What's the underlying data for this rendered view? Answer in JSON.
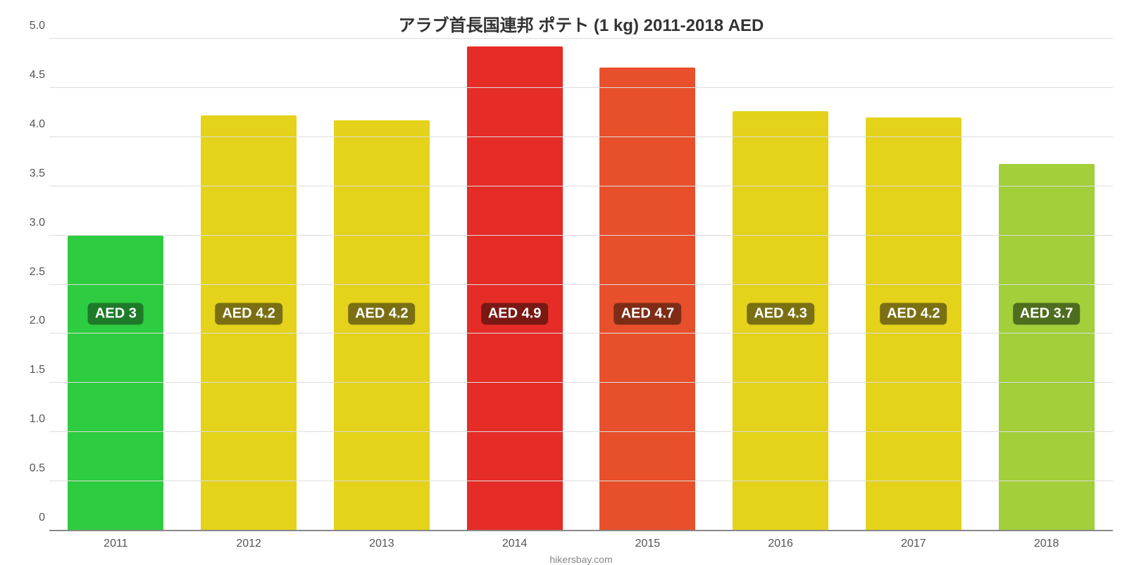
{
  "chart": {
    "type": "bar",
    "title": "アラブ首長国連邦 ポテト (1 kg) 2011-2018 AED",
    "title_fontsize": 24,
    "title_color": "#333333",
    "background_color": "#ffffff",
    "grid_color": "#dddddd",
    "axis_color": "#888888",
    "tick_label_color": "#555555",
    "tick_fontsize": 16,
    "source": "hikersbay.com",
    "source_fontsize": 14,
    "source_color": "#888888",
    "ylim": [
      0,
      5.0
    ],
    "ytick_step": 0.5,
    "yticks": [
      "0",
      "0.5",
      "1.0",
      "1.5",
      "2.0",
      "2.5",
      "3.0",
      "3.5",
      "4.0",
      "4.5",
      "5.0"
    ],
    "bar_width_pct": 72,
    "bar_label_fontsize": 20,
    "bar_label_y_value": 2.2,
    "categories": [
      "2011",
      "2012",
      "2013",
      "2014",
      "2015",
      "2016",
      "2017",
      "2018"
    ],
    "values": [
      3.0,
      4.22,
      4.17,
      4.92,
      4.71,
      4.26,
      4.2,
      3.73
    ],
    "value_labels": [
      "AED 3",
      "AED 4.2",
      "AED 4.2",
      "AED 4.9",
      "AED 4.7",
      "AED 4.3",
      "AED 4.2",
      "AED 3.7"
    ],
    "bar_colors": [
      "#2ecc40",
      "#e4d31a",
      "#e4d31a",
      "#e62c27",
      "#e8502b",
      "#e4d31a",
      "#e4d31a",
      "#a2cf3a"
    ],
    "label_bg_colors": [
      "#1e7a28",
      "#7a6f12",
      "#7a6f12",
      "#7a1814",
      "#7e2c16",
      "#7a6f12",
      "#7a6f12",
      "#4e6d1e"
    ]
  }
}
